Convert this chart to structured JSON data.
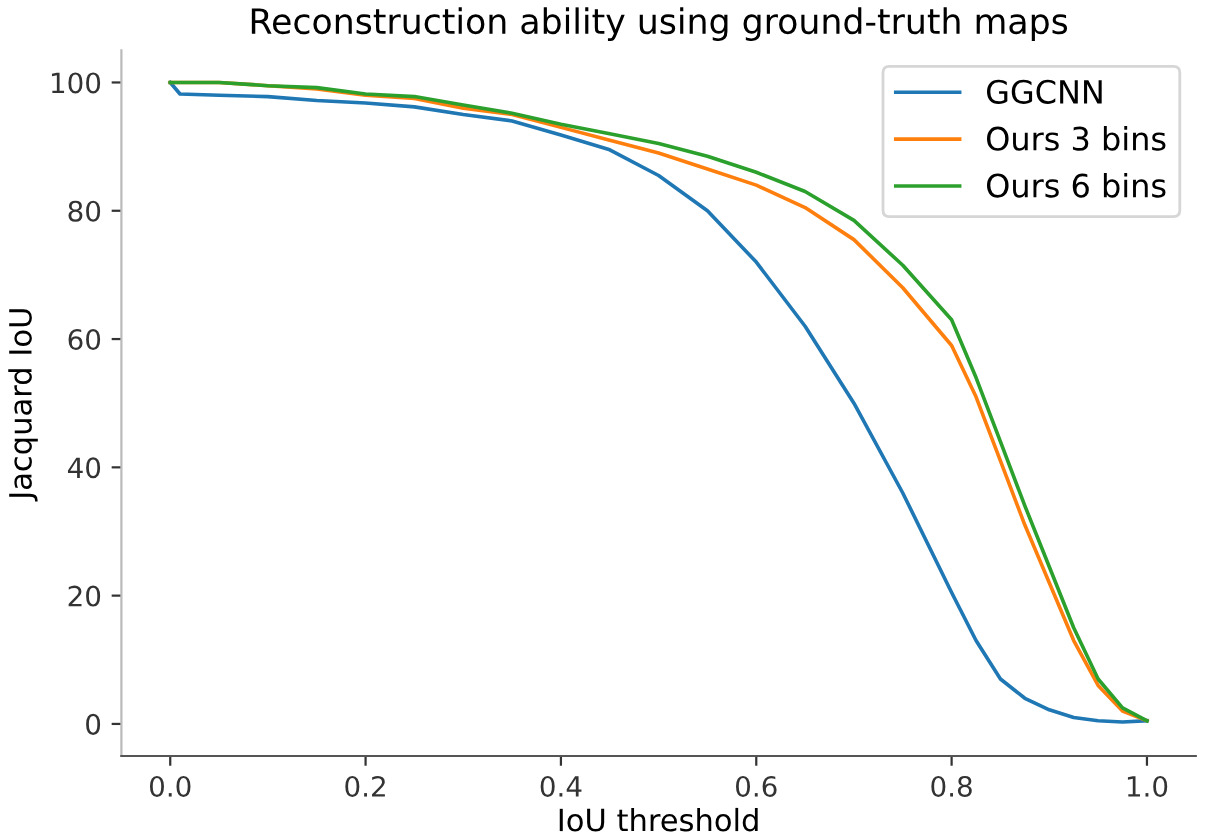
{
  "chart_data": {
    "type": "line",
    "title": "Reconstruction ability using ground-truth maps",
    "xlabel": "IoU threshold",
    "ylabel": "Jacquard IoU",
    "xlim": [
      -0.05,
      1.05
    ],
    "xticks": [
      {
        "value": 0,
        "label": "0.0"
      },
      0.2,
      0.4,
      0.6,
      0.8,
      {
        "value": 1,
        "label": "1.0"
      }
    ],
    "ylim": [
      -5,
      105
    ],
    "yticks": [
      0,
      20,
      40,
      60,
      80,
      100
    ],
    "grid": false,
    "legend": "top right",
    "marker": "none",
    "line_style": "solid",
    "series": [
      {
        "name": "GGCNN",
        "color": "#1f77b4",
        "x": [
          0,
          0.01,
          0.05,
          0.1,
          0.15,
          0.2,
          0.25,
          0.3,
          0.35,
          0.4,
          0.45,
          0.5,
          0.55,
          0.6,
          0.65,
          0.7,
          0.75,
          0.8,
          0.825,
          0.85,
          0.875,
          0.9,
          0.925,
          0.95,
          0.975,
          1.0
        ],
        "values": [
          100,
          98.2,
          98,
          97.8,
          97.2,
          96.8,
          96.2,
          95,
          94,
          91.8,
          89.5,
          85.5,
          80,
          72,
          62,
          50,
          36,
          20.5,
          13,
          7,
          4,
          2.2,
          1,
          0.5,
          0.3,
          0.5
        ]
      },
      {
        "name": "Ours 3 bins",
        "color": "#ff7f0e",
        "x": [
          0,
          0.05,
          0.1,
          0.15,
          0.2,
          0.25,
          0.3,
          0.35,
          0.4,
          0.45,
          0.5,
          0.55,
          0.6,
          0.65,
          0.7,
          0.75,
          0.8,
          0.825,
          0.85,
          0.875,
          0.9,
          0.925,
          0.95,
          0.975,
          1.0
        ],
        "values": [
          100,
          100,
          99.5,
          99,
          98,
          97.5,
          96,
          95,
          93,
          91,
          89,
          86.5,
          84,
          80.5,
          75.5,
          68,
          59,
          51,
          41,
          31,
          22,
          13,
          6,
          2,
          0.5
        ]
      },
      {
        "name": "Ours 6 bins",
        "color": "#2ca02c",
        "x": [
          0,
          0.05,
          0.1,
          0.15,
          0.2,
          0.25,
          0.3,
          0.35,
          0.4,
          0.45,
          0.5,
          0.55,
          0.6,
          0.65,
          0.7,
          0.75,
          0.8,
          0.825,
          0.85,
          0.875,
          0.9,
          0.925,
          0.95,
          0.975,
          1.0
        ],
        "values": [
          100,
          100,
          99.5,
          99.2,
          98.2,
          97.8,
          96.5,
          95.2,
          93.5,
          92,
          90.5,
          88.5,
          86,
          83,
          78.5,
          71.5,
          63,
          54,
          44,
          34,
          24.5,
          15,
          7,
          2.5,
          0.5
        ]
      }
    ]
  }
}
